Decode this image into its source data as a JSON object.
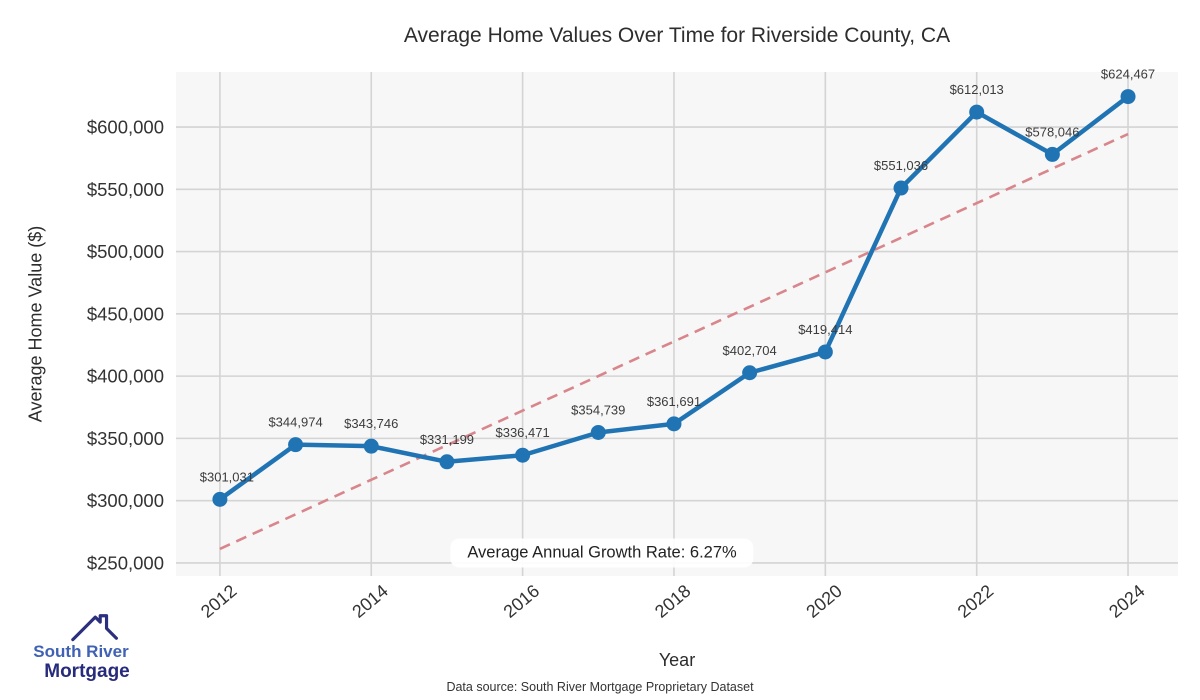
{
  "chart_data": {
    "type": "line",
    "title": "Average Home Values Over Time for Riverside County, CA",
    "xlabel": "Year",
    "ylabel": "Average Home Value ($)",
    "x": [
      2012,
      2013,
      2014,
      2015,
      2016,
      2017,
      2018,
      2019,
      2020,
      2021,
      2022,
      2023,
      2024
    ],
    "values": [
      301031,
      344974,
      343746,
      331199,
      336471,
      354739,
      361691,
      402704,
      419414,
      551036,
      612013,
      578046,
      624467
    ],
    "point_labels": [
      "$301,031",
      "$344,974",
      "$343,746",
      "$331,199",
      "$336,471",
      "$354,739",
      "$361,691",
      "$402,704",
      "$419,414",
      "$551,036",
      "$612,013",
      "$578,046",
      "$624,467"
    ],
    "xticks": [
      2012,
      2014,
      2016,
      2018,
      2020,
      2022,
      2024
    ],
    "yticks": [
      250000,
      300000,
      350000,
      400000,
      450000,
      500000,
      550000,
      600000
    ],
    "ytick_labels": [
      "$250,000",
      "$300,000",
      "$350,000",
      "$400,000",
      "$450,000",
      "$500,000",
      "$550,000",
      "$600,000"
    ],
    "xlim": [
      2011.42,
      2024.66
    ],
    "ylim": [
      239500,
      644200
    ],
    "grid": true,
    "legend": "none",
    "trend": {
      "style": "dashed",
      "start_year": 2012,
      "end_year": 2024,
      "start_value": 261247,
      "end_value": 594373
    },
    "annotation": "Average Annual Growth Rate: 6.27%",
    "colors": {
      "line": "#2174b4",
      "marker": "#2174b4",
      "trend": "#d8868c",
      "plot_bg": "#f7f7f7",
      "grid": "#d4d4d4",
      "tick_text": "#333333",
      "label_text": "#3c3c3c"
    }
  },
  "logo": {
    "line1": "South River",
    "line2": "Mortgage",
    "icon": "house-roof-icon",
    "line1_color": "#4062b4",
    "line2_color": "#272b7c",
    "icon_color": "#2b2f7e"
  },
  "caption": "Data source: South River Mortgage Proprietary Dataset"
}
